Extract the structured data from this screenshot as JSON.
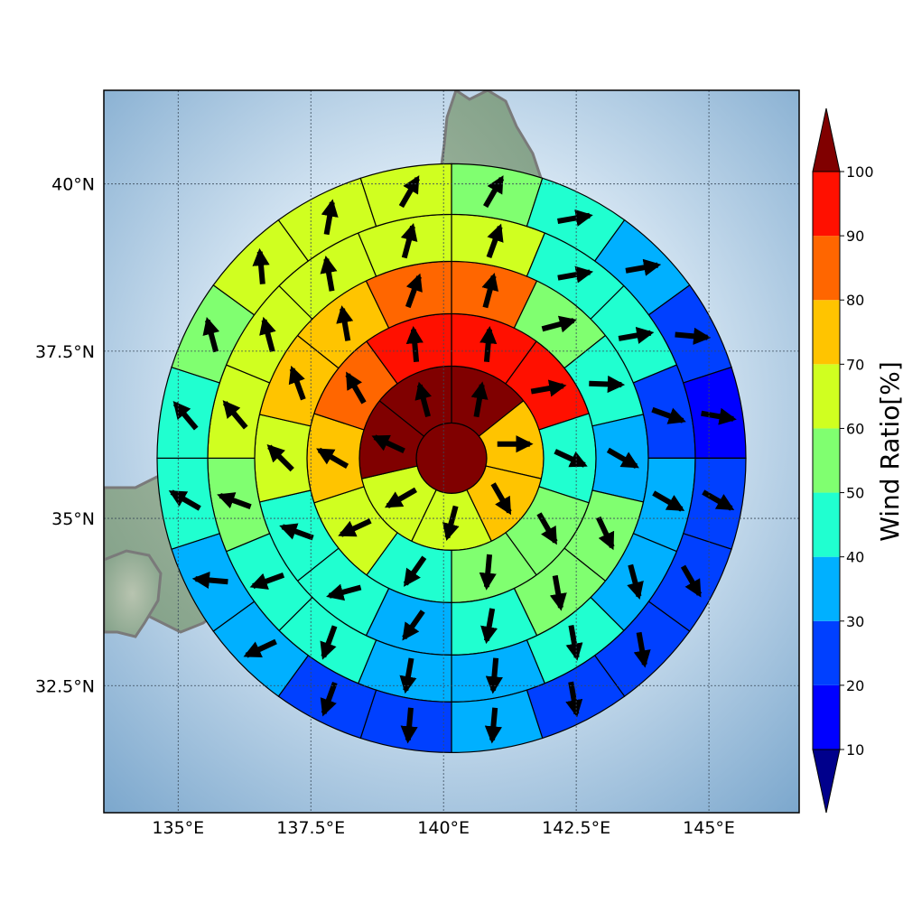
{
  "map": {
    "lon_range": [
      133.6,
      146.7
    ],
    "lat_range": [
      30.6,
      41.4
    ],
    "center": {
      "lon": 140.15,
      "lat": 35.9
    },
    "x_ticks": [
      {
        "value": 135.0,
        "label": "135°E"
      },
      {
        "value": 137.5,
        "label": "137.5°E"
      },
      {
        "value": 140.0,
        "label": "140°E"
      },
      {
        "value": 142.5,
        "label": "142.5°E"
      },
      {
        "value": 145.0,
        "label": "145°E"
      }
    ],
    "y_ticks": [
      {
        "value": 32.5,
        "label": "32.5°N"
      },
      {
        "value": 35.0,
        "label": "35°N"
      },
      {
        "value": 37.5,
        "label": "37.5°N"
      },
      {
        "value": 40.0,
        "label": "40°N"
      }
    ],
    "gridlines": true,
    "land_color": "#8fa68f",
    "coastline_color": "#7a7a7a",
    "sea_color": "#8ab0d2"
  },
  "chart_data": {
    "type": "polar-sector-map",
    "colorbar": {
      "label": "Wind Ratio[%]",
      "ticks": [
        "10",
        "20",
        "30",
        "40",
        "50",
        "60",
        "70",
        "80",
        "90",
        "100"
      ],
      "bounds": [
        10,
        20,
        30,
        40,
        50,
        60,
        70,
        80,
        90,
        100
      ],
      "colors": [
        "#0000ff",
        "#0040ff",
        "#00b0ff",
        "#20ffd0",
        "#80ff70",
        "#d0ff20",
        "#ffc400",
        "#ff6600",
        "#ff1000"
      ],
      "under_color": "#00008c",
      "over_color": "#800000",
      "extend": "both"
    },
    "rings": [
      {
        "values": [
          100
        ],
        "directions": [
          0
        ]
      },
      {
        "values": [
          100,
          70,
          70,
          60,
          60,
          100,
          100
        ],
        "directions": [
          10,
          90,
          150,
          195,
          240,
          295,
          345
        ]
      },
      {
        "values": [
          90,
          90,
          40,
          50,
          50,
          40,
          60,
          70,
          80,
          90
        ],
        "directions": [
          5,
          80,
          115,
          150,
          185,
          215,
          245,
          300,
          330,
          355
        ]
      },
      {
        "values": [
          85,
          50,
          40,
          30,
          50,
          50,
          40,
          30,
          40,
          40,
          60,
          70,
          70,
          85
        ],
        "directions": [
          15,
          75,
          92,
          120,
          155,
          170,
          190,
          215,
          255,
          290,
          315,
          340,
          350,
          20
        ]
      },
      {
        "values": [
          60,
          40,
          40,
          20,
          30,
          30,
          40,
          30,
          30,
          40,
          40,
          50,
          60,
          60,
          60,
          60
        ],
        "directions": [
          20,
          80,
          80,
          110,
          120,
          165,
          170,
          185,
          190,
          200,
          250,
          290,
          320,
          345,
          350,
          15
        ]
      },
      {
        "values": [
          50,
          40,
          30,
          20,
          15,
          20,
          20,
          20,
          25,
          30,
          25,
          20,
          30,
          30,
          40,
          40,
          50,
          60,
          60,
          60
        ],
        "directions": [
          30,
          80,
          80,
          95,
          100,
          120,
          150,
          170,
          170,
          185,
          185,
          200,
          245,
          275,
          300,
          320,
          345,
          355,
          10,
          30
        ]
      }
    ]
  }
}
